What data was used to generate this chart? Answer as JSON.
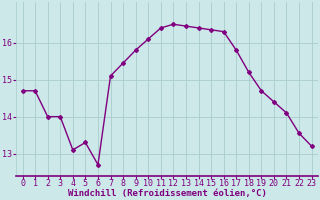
{
  "x": [
    0,
    1,
    2,
    3,
    4,
    5,
    6,
    7,
    8,
    9,
    10,
    11,
    12,
    13,
    14,
    15,
    16,
    17,
    18,
    19,
    20,
    21,
    22,
    23
  ],
  "y": [
    14.7,
    14.7,
    14.0,
    14.0,
    13.1,
    13.3,
    12.7,
    15.1,
    15.45,
    15.8,
    16.1,
    16.4,
    16.5,
    16.45,
    16.4,
    16.35,
    16.3,
    15.8,
    15.2,
    14.7,
    14.4,
    14.1,
    13.55,
    13.2
  ],
  "line_color": "#800080",
  "marker": "D",
  "marker_size": 2,
  "line_width": 1.0,
  "bg_color": "#cce8e8",
  "grid_color": "#aacccc",
  "xlabel": "Windchill (Refroidissement éolien,°C)",
  "xlabel_color": "#800080",
  "xlabel_fontsize": 6.5,
  "tick_color": "#800080",
  "tick_fontsize": 6,
  "yticks": [
    13,
    14,
    15,
    16
  ],
  "ylim": [
    12.4,
    17.1
  ],
  "xlim": [
    -0.5,
    23.5
  ]
}
